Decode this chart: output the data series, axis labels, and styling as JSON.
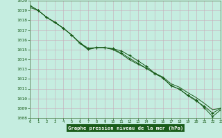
{
  "x_label": "Graphe pression niveau de la mer (hPa)",
  "hours": [
    0,
    1,
    2,
    3,
    4,
    5,
    6,
    7,
    8,
    9,
    10,
    11,
    12,
    13,
    14,
    15,
    16,
    17,
    18,
    19,
    20,
    21,
    22,
    23
  ],
  "line1": [
    1019.3,
    1019.0,
    1018.3,
    1017.8,
    1017.2,
    1016.5,
    1015.7,
    1015.15,
    1015.2,
    1015.2,
    1015.1,
    1014.85,
    1014.4,
    1013.85,
    1013.3,
    1012.6,
    1012.1,
    1011.3,
    1010.95,
    1010.35,
    1009.85,
    1009.05,
    1008.15,
    1008.85
  ],
  "line2": [
    1019.5,
    1019.0,
    1018.3,
    1017.8,
    1017.2,
    1016.5,
    1015.7,
    1015.05,
    1015.2,
    1015.2,
    1015.05,
    1014.65,
    1014.1,
    1013.6,
    1013.1,
    1012.55,
    1012.1,
    1011.3,
    1010.95,
    1010.3,
    1009.75,
    1009.2,
    1008.5,
    1009.0
  ],
  "line3": [
    1019.5,
    1019.0,
    1018.3,
    1017.75,
    1017.2,
    1016.5,
    1015.65,
    1015.0,
    1015.2,
    1015.2,
    1015.0,
    1014.55,
    1013.95,
    1013.5,
    1013.1,
    1012.6,
    1012.2,
    1011.5,
    1011.15,
    1010.6,
    1010.1,
    1009.5,
    1008.85,
    1009.0
  ],
  "ylim": [
    1008,
    1020
  ],
  "xlim": [
    0,
    23
  ],
  "yticks": [
    1008,
    1009,
    1010,
    1011,
    1012,
    1013,
    1014,
    1015,
    1016,
    1017,
    1018,
    1019,
    1020
  ],
  "xticks": [
    0,
    1,
    2,
    3,
    4,
    5,
    6,
    7,
    8,
    9,
    10,
    11,
    12,
    13,
    14,
    15,
    16,
    17,
    18,
    19,
    20,
    21,
    22,
    23
  ],
  "line_color": "#1a5c1a",
  "bg_color": "#c5ede0",
  "grid_color": "#a8d8c8",
  "label_bg": "#1a5c1a",
  "label_fg": "#ffffff",
  "spine_color": "#5a8a5a"
}
